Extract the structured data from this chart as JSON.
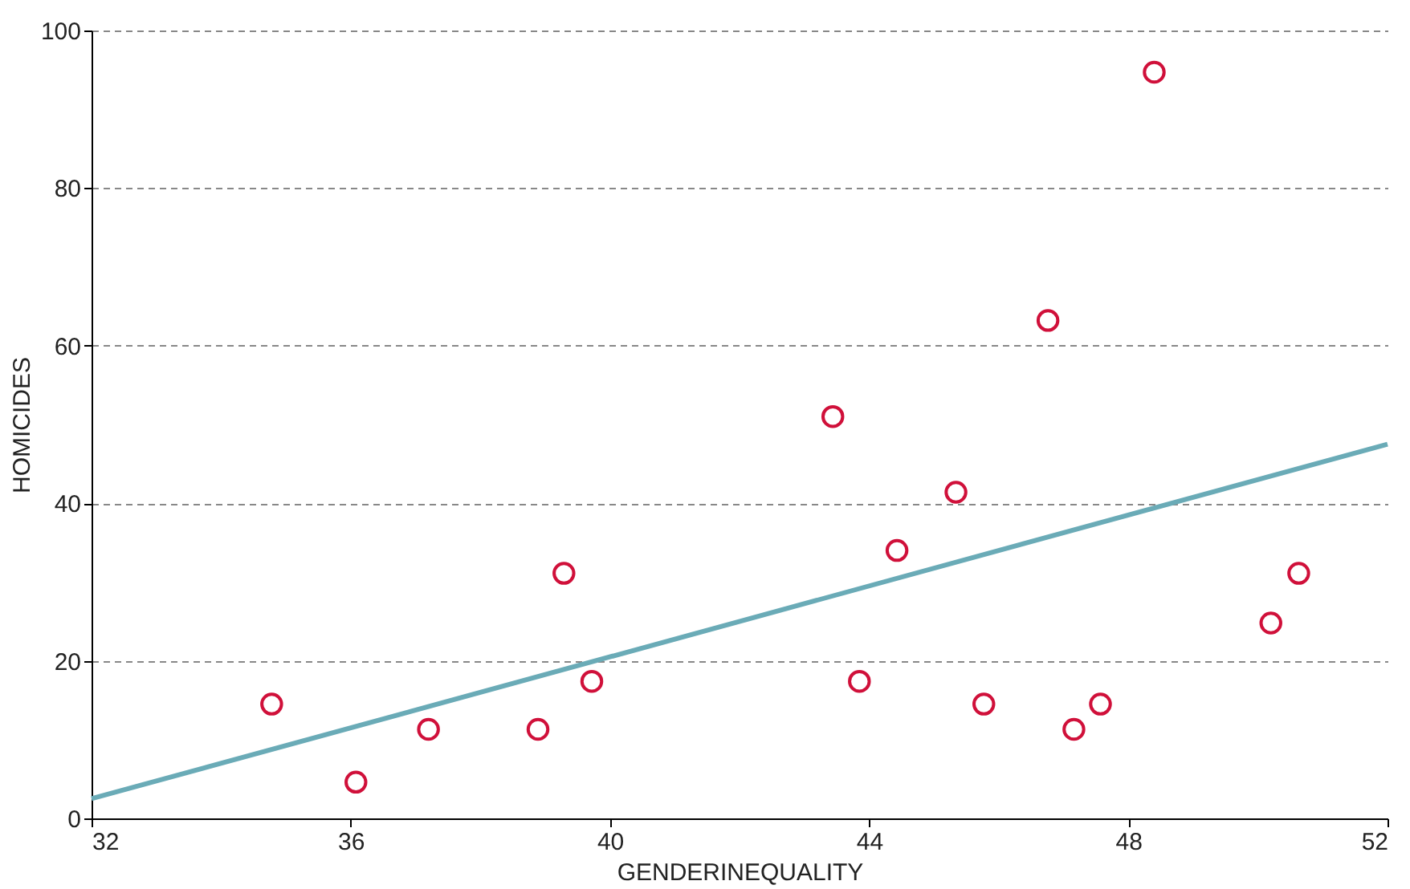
{
  "chart_data": {
    "type": "scatter",
    "xlabel": "GENDERINEQUALITY",
    "ylabel": "HOMICIDES",
    "xlim": [
      32,
      52
    ],
    "ylim": [
      0,
      100
    ],
    "xticks": [
      32,
      36,
      40,
      44,
      48,
      52
    ],
    "yticks": [
      0,
      20,
      40,
      60,
      80,
      100
    ],
    "grid": "y",
    "series": [
      {
        "color": "#d0103a",
        "marker": "circle",
        "x": [
          34.78,
          36.08,
          37.2,
          38.89,
          39.29,
          39.72,
          43.44,
          43.85,
          44.43,
          45.34,
          45.77,
          46.76,
          47.16,
          47.57,
          48.4,
          50.2,
          50.63
        ],
        "values": [
          14.5,
          4.6,
          11.3,
          11.3,
          31.1,
          17.4,
          51,
          17.4,
          34,
          41.4,
          14.5,
          63.2,
          11.3,
          14.5,
          94.7,
          24.8,
          31.1
        ]
      },
      {
        "type": "line",
        "color": "#6aabb7",
        "x": [
          32,
          52
        ],
        "values": [
          2.5,
          47.5
        ],
        "line_style": "solid"
      }
    ]
  }
}
